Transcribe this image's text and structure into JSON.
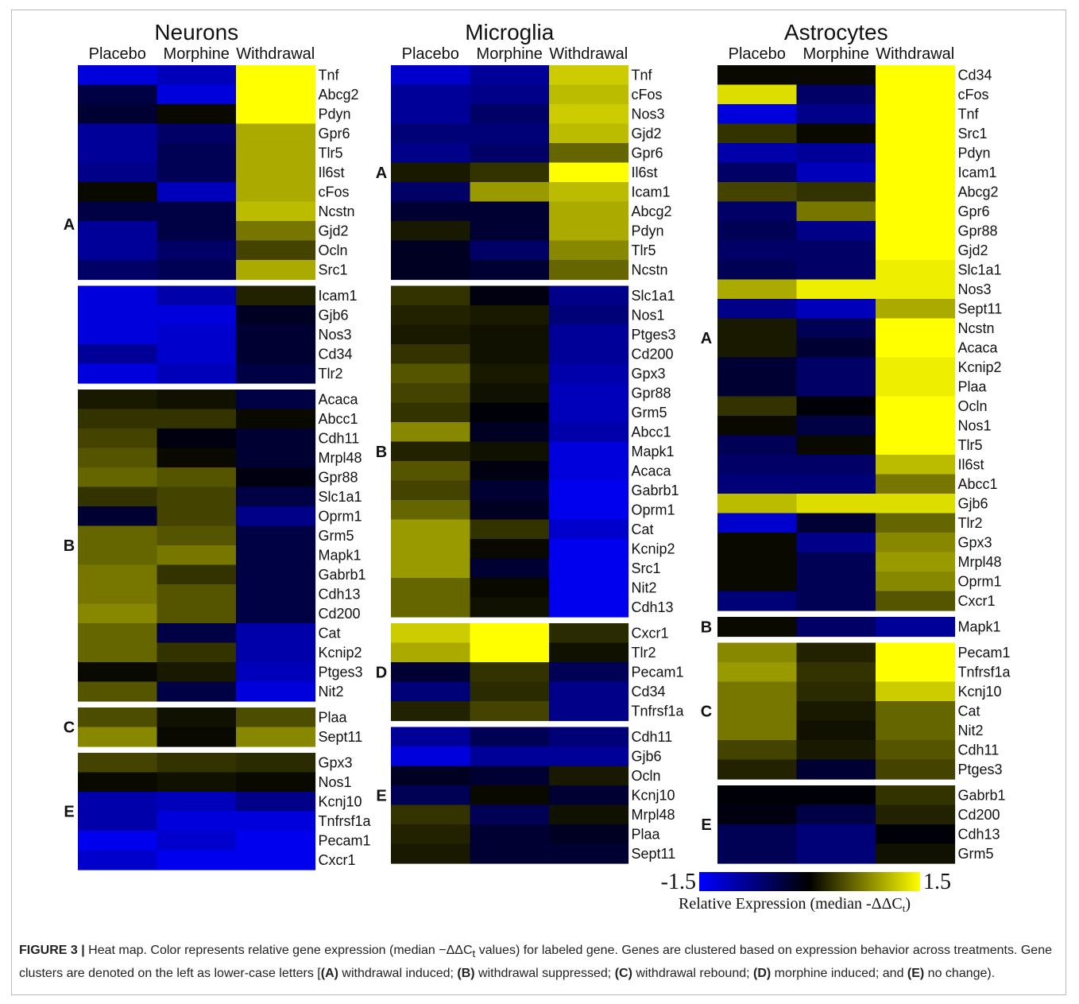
{
  "chart_data": {
    "type": "heatmap",
    "colorbar": {
      "min": -1.5,
      "max": 1.5,
      "min_label": "-1.5",
      "max_label": "1.5",
      "label": "Relative Expression (median -ΔΔC",
      "label_sub": "t",
      "label_end": ")",
      "colors": [
        "#0000ff",
        "#000000",
        "#ffff00"
      ]
    },
    "columns": [
      "Placebo",
      "Morphine",
      "Withdrawal"
    ],
    "panels": [
      {
        "title": "Neurons",
        "clusters": [
          {
            "label": "A",
            "genes": [
              "Tnf",
              "Abcg2",
              "Pdyn",
              "Gpr6",
              "Tlr5",
              "Il6st",
              "cFos",
              "Ncstn",
              "Gjd2",
              "Ocln",
              "Src1"
            ],
            "values": [
              [
                -1.3,
                -1.1,
                1.5
              ],
              [
                -0.4,
                -1.3,
                1.5
              ],
              [
                -0.3,
                0.05,
                1.5
              ],
              [
                -0.9,
                -0.6,
                1.0
              ],
              [
                -0.9,
                -0.5,
                1.0
              ],
              [
                -0.8,
                -0.5,
                1.0
              ],
              [
                0.05,
                -1.1,
                1.0
              ],
              [
                -0.4,
                -0.4,
                1.1
              ],
              [
                -0.9,
                -0.4,
                0.7
              ],
              [
                -0.9,
                -0.6,
                0.4
              ],
              [
                -0.6,
                -0.5,
                1.0
              ]
            ]
          },
          {
            "label": "A",
            "genes": [
              "Icam1",
              "Gjb6",
              "Nos3",
              "Cd34",
              "Tlr2"
            ],
            "values": [
              [
                -1.3,
                -1.0,
                0.2
              ],
              [
                -1.3,
                -1.3,
                -0.2
              ],
              [
                -1.3,
                -1.2,
                -0.3
              ],
              [
                -0.9,
                -1.2,
                -0.3
              ],
              [
                -1.3,
                -1.1,
                -0.4
              ]
            ]
          }
        ],
        "clusters_b": [
          {
            "label": "B",
            "genes": [
              "Acaca",
              "Abcc1",
              "Cdh11",
              "Mrpl48",
              "Gpr88",
              "Slc1a1",
              "Oprm1",
              "Grm5",
              "Mapk1",
              "Gabrb1",
              "Cdh13",
              "Cd200",
              "Cat",
              "Kcnip2",
              "Ptges3",
              "Nit2"
            ],
            "values": [
              [
                0.15,
                0.1,
                -0.4
              ],
              [
                0.3,
                0.3,
                0.05
              ],
              [
                0.4,
                -0.1,
                -0.3
              ],
              [
                0.5,
                0.05,
                -0.3
              ],
              [
                0.6,
                0.5,
                -0.1
              ],
              [
                0.3,
                0.4,
                -0.4
              ],
              [
                -0.3,
                0.4,
                -0.8
              ],
              [
                0.6,
                0.5,
                -0.4
              ],
              [
                0.6,
                0.7,
                -0.4
              ],
              [
                0.7,
                0.3,
                -0.4
              ],
              [
                0.7,
                0.5,
                -0.4
              ],
              [
                0.8,
                0.5,
                -0.4
              ],
              [
                0.6,
                -0.4,
                -1.0
              ],
              [
                0.6,
                0.3,
                -1.0
              ],
              [
                0.05,
                0.15,
                -1.1
              ],
              [
                0.5,
                -0.4,
                -1.3
              ]
            ]
          },
          {
            "label": "C",
            "genes": [
              "Plaa",
              "Sept11"
            ],
            "values": [
              [
                0.45,
                0.1,
                0.45
              ],
              [
                0.8,
                0.05,
                0.8
              ]
            ]
          },
          {
            "label": "E",
            "genes": [
              "Gpx3",
              "Nos1",
              "Kcnj10",
              "Tnfrsf1a",
              "Pecam1",
              "Cxcr1"
            ],
            "values": [
              [
                0.4,
                0.3,
                0.25
              ],
              [
                0.05,
                0.1,
                0.05
              ],
              [
                -1.0,
                -1.1,
                -0.8
              ],
              [
                -1.0,
                -1.3,
                -1.3
              ],
              [
                -1.4,
                -1.2,
                -1.4
              ],
              [
                -1.2,
                -1.4,
                -1.4
              ]
            ]
          }
        ]
      },
      {
        "title": "Microglia",
        "clusters": [
          {
            "label": "A",
            "genes": [
              "Tnf",
              "cFos",
              "Nos3",
              "Gjd2",
              "Gpr6",
              "Il6st",
              "Icam1",
              "Abcg2",
              "Pdyn",
              "Tlr5",
              "Ncstn"
            ],
            "values": [
              [
                -1.2,
                -0.9,
                1.2
              ],
              [
                -0.9,
                -0.8,
                1.1
              ],
              [
                -0.9,
                -0.6,
                1.2
              ],
              [
                -0.7,
                -0.7,
                1.1
              ],
              [
                -0.8,
                -0.6,
                0.6
              ],
              [
                0.15,
                0.3,
                1.5
              ],
              [
                -0.6,
                0.9,
                1.1
              ],
              [
                -0.3,
                -0.3,
                1.0
              ],
              [
                0.15,
                -0.3,
                1.0
              ],
              [
                -0.2,
                -0.6,
                0.8
              ],
              [
                -0.2,
                -0.3,
                0.6
              ]
            ]
          }
        ],
        "clusters_b": [
          {
            "label": "B",
            "genes": [
              "Slc1a1",
              "Nos1",
              "Ptges3",
              "Cd200",
              "Gpx3",
              "Gpr88",
              "Grm5",
              "Abcc1",
              "Mapk1",
              "Acaca",
              "Gabrb1",
              "Oprm1",
              "Cat",
              "Kcnip2",
              "Src1",
              "Nit2",
              "Cdh13"
            ],
            "values": [
              [
                0.3,
                -0.1,
                -0.8
              ],
              [
                0.2,
                0.15,
                -0.7
              ],
              [
                0.15,
                0.1,
                -0.9
              ],
              [
                0.3,
                0.1,
                -0.9
              ],
              [
                0.5,
                0.15,
                -1.0
              ],
              [
                0.4,
                0.1,
                -1.1
              ],
              [
                0.3,
                -0.05,
                -1.1
              ],
              [
                0.8,
                -0.2,
                -1.0
              ],
              [
                0.2,
                0.1,
                -1.3
              ],
              [
                0.5,
                -0.1,
                -1.3
              ],
              [
                0.4,
                -0.3,
                -1.4
              ],
              [
                0.6,
                -0.2,
                -1.4
              ],
              [
                0.9,
                0.3,
                -1.2
              ],
              [
                0.9,
                0.05,
                -1.4
              ],
              [
                0.9,
                -0.3,
                -1.4
              ],
              [
                0.6,
                0.05,
                -1.4
              ],
              [
                0.6,
                0.1,
                -1.4
              ]
            ]
          },
          {
            "label": "D",
            "genes": [
              "Cxcr1",
              "Tlr2",
              "Pecam1",
              "Cd34",
              "Tnfrsf1a"
            ],
            "values": [
              [
                1.2,
                1.5,
                0.25
              ],
              [
                1.0,
                1.5,
                0.1
              ],
              [
                -0.3,
                0.3,
                -0.5
              ],
              [
                -0.7,
                0.25,
                -0.8
              ],
              [
                0.2,
                0.4,
                -0.8
              ]
            ]
          },
          {
            "label": "E",
            "genes": [
              "Cdh11",
              "Gjb6",
              "Ocln",
              "Kcnj10",
              "Mrpl48",
              "Plaa",
              "Sept11"
            ],
            "values": [
              [
                -0.9,
                -0.5,
                -0.7
              ],
              [
                -1.3,
                -0.9,
                -0.9
              ],
              [
                -0.2,
                -0.3,
                0.15
              ],
              [
                -0.5,
                0.05,
                -0.3
              ],
              [
                0.3,
                -0.5,
                0.1
              ],
              [
                0.2,
                -0.3,
                -0.2
              ],
              [
                0.15,
                -0.3,
                -0.3
              ]
            ]
          }
        ]
      },
      {
        "title": "Astrocytes",
        "clusters": [
          {
            "label": "A",
            "genes": [
              "Cd34",
              "cFos",
              "Tnf",
              "Src1",
              "Pdyn",
              "Icam1",
              "Abcg2",
              "Gpr6",
              "Gpr88",
              "Gjd2",
              "Slc1a1",
              "Nos3",
              "Sept11",
              "Ncstn",
              "Acaca",
              "Kcnip2",
              "Plaa",
              "Ocln",
              "Nos1",
              "Tlr5",
              "Il6st",
              "Abcc1",
              "Gjb6",
              "Tlr2",
              "Gpx3",
              "Mrpl48",
              "Oprm1",
              "Cxcr1"
            ],
            "values": [
              [
                0.05,
                0.05,
                1.5
              ],
              [
                1.3,
                -0.6,
                1.5
              ],
              [
                -1.3,
                -0.8,
                1.5
              ],
              [
                0.3,
                0.05,
                1.5
              ],
              [
                -1.0,
                -0.9,
                1.5
              ],
              [
                -0.6,
                -1.1,
                1.5
              ],
              [
                0.4,
                0.3,
                1.5
              ],
              [
                -0.6,
                0.7,
                1.5
              ],
              [
                -0.5,
                -0.8,
                1.5
              ],
              [
                -0.6,
                -0.6,
                1.5
              ],
              [
                -0.5,
                -0.6,
                1.4
              ],
              [
                1.0,
                1.4,
                1.4
              ],
              [
                -0.8,
                -1.1,
                1.0
              ],
              [
                0.15,
                -0.5,
                1.5
              ],
              [
                0.15,
                -0.3,
                1.5
              ],
              [
                -0.3,
                -0.6,
                1.4
              ],
              [
                -0.3,
                -0.6,
                1.4
              ],
              [
                0.3,
                -0.05,
                1.5
              ],
              [
                0.05,
                -0.4,
                1.5
              ],
              [
                -0.5,
                0.05,
                1.5
              ],
              [
                -0.6,
                -0.6,
                1.1
              ],
              [
                -0.7,
                -0.7,
                0.7
              ],
              [
                1.1,
                1.3,
                1.3
              ],
              [
                -1.2,
                -0.3,
                0.6
              ],
              [
                0.05,
                -0.8,
                0.8
              ],
              [
                0.05,
                -0.5,
                0.9
              ],
              [
                0.05,
                -0.5,
                0.8
              ],
              [
                -0.7,
                -0.5,
                0.5
              ]
            ]
          }
        ],
        "clusters_b": [
          {
            "label": "B",
            "genes": [
              "Mapk1"
            ],
            "values": [
              [
                0.05,
                -0.6,
                -0.9
              ]
            ]
          },
          {
            "label": "C",
            "genes": [
              "Pecam1",
              "Tnfrsf1a",
              "Kcnj10",
              "Cat",
              "Nit2",
              "Cdh11",
              "Ptges3"
            ],
            "values": [
              [
                0.8,
                0.2,
                1.5
              ],
              [
                0.9,
                0.3,
                1.5
              ],
              [
                0.7,
                0.25,
                1.2
              ],
              [
                0.7,
                0.15,
                0.6
              ],
              [
                0.7,
                0.1,
                0.6
              ],
              [
                0.4,
                0.15,
                0.5
              ],
              [
                0.2,
                -0.3,
                0.4
              ]
            ]
          },
          {
            "label": "E",
            "genes": [
              "Gabrb1",
              "Cd200",
              "Cdh13",
              "Grm5"
            ],
            "values": [
              [
                -0.05,
                -0.05,
                0.3
              ],
              [
                -0.1,
                -0.4,
                0.2
              ],
              [
                -0.5,
                -0.7,
                -0.05
              ],
              [
                -0.5,
                -0.7,
                0.1
              ]
            ]
          }
        ]
      }
    ]
  },
  "caption": {
    "figure_label": "FIGURE 3 |",
    "text_1": " Heat map. Color represents relative gene expression (median −ΔΔC",
    "text_1_sub": "t",
    "text_2": " values) for labeled gene. Genes are clustered based on expression behavior across treatments. Gene clusters are denoted on the left as lower-case letters [",
    "a_label": "(A)",
    "a_text": " withdrawal induced; ",
    "b_label": "(B)",
    "b_text": " withdrawal suppressed; ",
    "c_label": "(C)",
    "c_text": " withdrawal rebound; ",
    "d_label": "(D)",
    "d_text": " morphine induced; and ",
    "e_label": "(E)",
    "e_text": " no change)."
  }
}
